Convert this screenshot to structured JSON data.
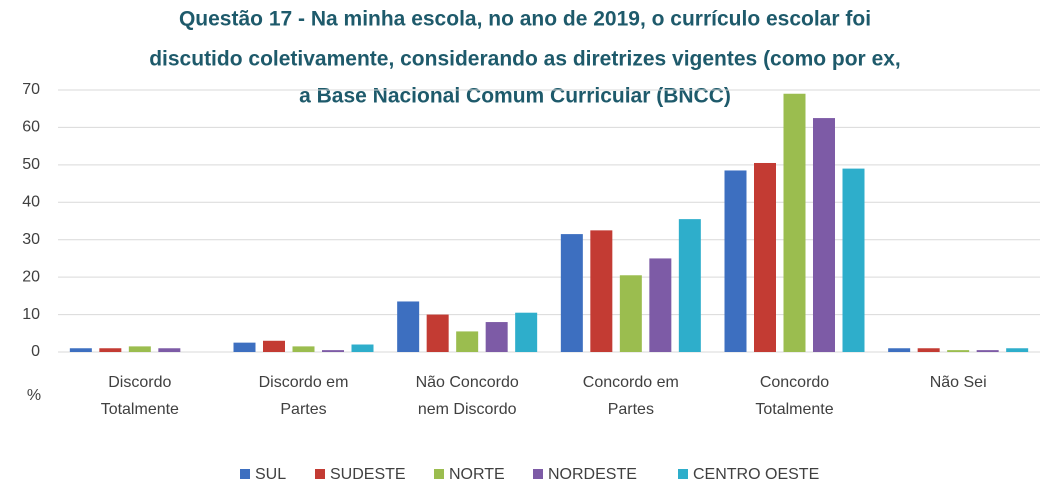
{
  "chart_data": {
    "type": "bar",
    "title": [
      "Questão 17 - Na minha escola, no ano de 2019,  o currículo escolar foi",
      "discutido coletivamente, considerando as diretrizes vigentes (como por ex,",
      "a Base Nacional Comum Curricular (BNCC)"
    ],
    "y_label": "%",
    "categories": [
      "Discordo\nTotalmente",
      "Discordo em\nPartes",
      "Não Concordo\nnem Discordo",
      "Concordo em\nPartes",
      "Concordo\nTotalmente",
      "Não Sei"
    ],
    "series": [
      {
        "name": "SUL",
        "color": "#3d6fc0",
        "values": [
          1,
          2.5,
          13.5,
          31.5,
          48.5,
          1
        ]
      },
      {
        "name": "SUDESTE",
        "color": "#c33b33",
        "values": [
          1,
          3,
          10,
          32.5,
          50.5,
          1
        ]
      },
      {
        "name": "NORTE",
        "color": "#9bbd4f",
        "values": [
          1.5,
          1.5,
          5.5,
          20.5,
          69,
          0.5
        ]
      },
      {
        "name": "NORDESTE",
        "color": "#7d5ba6",
        "values": [
          1,
          0.5,
          8,
          25,
          62.5,
          0.5
        ]
      },
      {
        "name": "CENTRO OESTE",
        "color": "#2eaecb",
        "values": [
          0,
          2,
          10.5,
          35.5,
          49,
          1
        ]
      }
    ],
    "ylim": [
      0,
      70
    ],
    "yticks": [
      0,
      10,
      20,
      30,
      40,
      50,
      60,
      70
    ],
    "grid": true,
    "legend": "bottom"
  }
}
